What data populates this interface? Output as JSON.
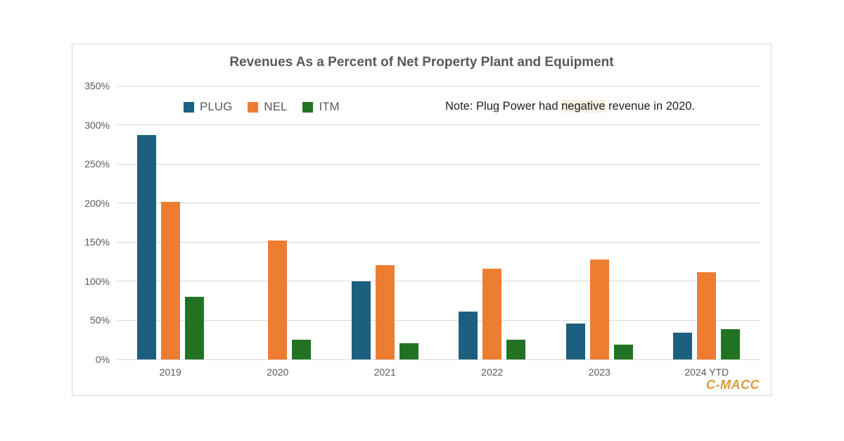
{
  "title": "Revenues As a Percent of Net Property Plant and Equipment",
  "note": {
    "prefix": "Note: Plug Power had ",
    "highlight": "negative",
    "suffix": " revenue in 2020."
  },
  "watermark": "C-MACC",
  "colors": {
    "plug": "#1d5f7f",
    "nel": "#ed7d31",
    "itm": "#217323",
    "grid": "#d9d9d9",
    "axis_text": "#595959",
    "title_text": "#595959",
    "note_highlight_bg": "#f6f1e1",
    "watermark": "#d89b3f",
    "card_border": "#d8d8d8"
  },
  "chart_data": {
    "type": "bar",
    "title": "Revenues As a Percent of Net Property Plant and Equipment",
    "categories": [
      "2019",
      "2020",
      "2021",
      "2022",
      "2023",
      "2024 YTD"
    ],
    "series": [
      {
        "name": "PLUG",
        "color_key": "plug",
        "values": [
          287,
          null,
          100,
          61,
          46,
          34
        ]
      },
      {
        "name": "NEL",
        "color_key": "nel",
        "values": [
          202,
          152,
          121,
          116,
          128,
          112
        ]
      },
      {
        "name": "ITM",
        "color_key": "itm",
        "values": [
          80,
          25,
          21,
          25,
          19,
          39
        ]
      }
    ],
    "y_ticks": [
      0,
      50,
      100,
      150,
      200,
      250,
      300,
      350
    ],
    "y_tick_labels": [
      "0%",
      "50%",
      "100%",
      "150%",
      "200%",
      "250%",
      "300%",
      "350%"
    ],
    "ylim": [
      0,
      350
    ],
    "xlabel": "",
    "ylabel": "",
    "grid": true,
    "legend_position": "top-left-inside",
    "annotation": "Note: Plug Power had negative revenue in 2020.",
    "missing_data_note": "PLUG has no bar in 2020 (negative revenue)"
  }
}
